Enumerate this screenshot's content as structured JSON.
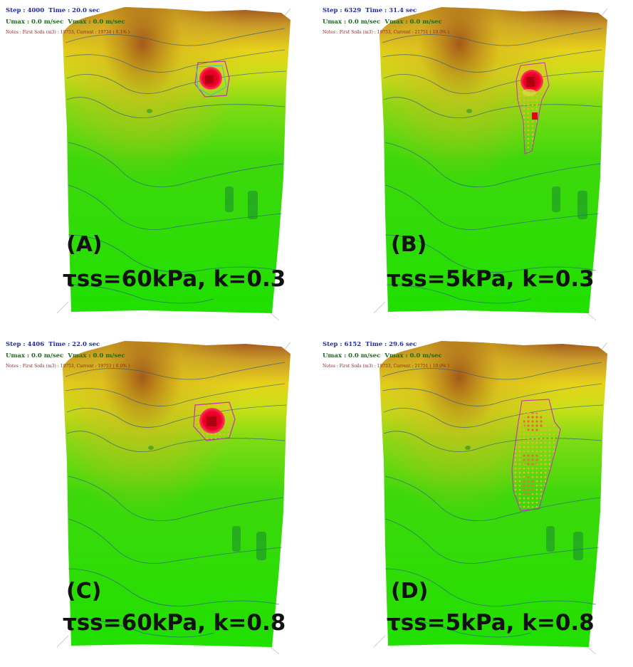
{
  "panels": [
    {
      "id": "A",
      "label": "(A)",
      "param": "τss=60kPa, k=0.3",
      "status": {
        "step": "Step : 4000",
        "time": "Time : 20.0 sec",
        "umax": "Umax : 0.0 m/sec",
        "vmax": "Vmax : 0.0 m/sec",
        "notes": "Notes : First Soils (m3) : 19753, Current : 19734 ( 0.1% )"
      }
    },
    {
      "id": "B",
      "label": "(B)",
      "param": "τss=5kPa, k=0.3",
      "status": {
        "step": "Step : 6329",
        "time": "Time : 31.4 sec",
        "umax": "Umax : 0.0 m/sec",
        "vmax": "Vmax : 0.0 m/sec",
        "notes": "Notes : First Soils (m3) : 19753, Current : 21751 ( 10.0% )"
      }
    },
    {
      "id": "C",
      "label": "(C)",
      "param": "τss=60kPa, k=0.8",
      "status": {
        "step": "Step : 4406",
        "time": "Time : 22.0 sec",
        "umax": "Umax : 0.0 m/sec",
        "vmax": "Vmax : 0.0 m/sec",
        "notes": "Notes : First Soils (m3) : 19753, Current : 19753 ( 0.0% )"
      }
    },
    {
      "id": "D",
      "label": "(D)",
      "param": "τss=5kPa, k=0.8",
      "status": {
        "step": "Step : 6152",
        "time": "Time : 29.6 sec",
        "umax": "Umax : 0.0 m/sec",
        "vmax": "Vmax : 0.0 m/sec",
        "notes": "Notes : First Soils (m3) : 19753, Current : 21751 ( 10.0% )"
      }
    }
  ],
  "colors": {
    "lowland": "#22e000",
    "midslope": "#9ee000",
    "upland": "#e0d000",
    "summit": "#b0601a",
    "debris_core": "#e8001a",
    "debris_spread": "#f0a030",
    "contour": "#2a5a8a",
    "source_outline": "#c030c0"
  }
}
